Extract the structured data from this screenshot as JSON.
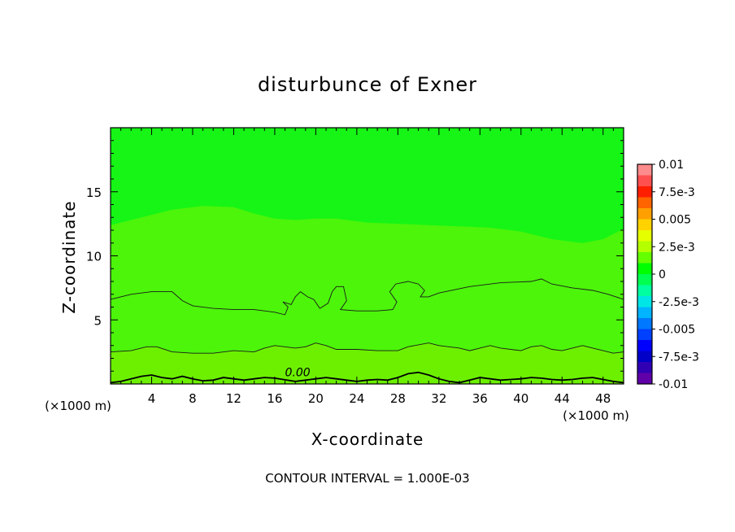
{
  "chart_data": {
    "type": "contour",
    "title": "disturbunce of Exner",
    "xlabel": "X-coordinate",
    "ylabel": "Z-coordinate",
    "x_unit": "(×1000 m)",
    "y_unit": "(×1000 m)",
    "xlim": [
      0,
      50
    ],
    "ylim": [
      0,
      20
    ],
    "x_ticks": [
      4,
      8,
      12,
      16,
      20,
      24,
      28,
      32,
      36,
      40,
      44,
      48
    ],
    "y_ticks": [
      5,
      10,
      15
    ],
    "footer": "CONTOUR INTERVAL = 1.000E-03",
    "contour_label": "0.00",
    "contour_label_pos": [
      17,
      0.6
    ],
    "colorbar": {
      "labels": [
        "0.01",
        "7.5e-3",
        "0.005",
        "2.5e-3",
        "0",
        "-2.5e-3",
        "-0.005",
        "-7.5e-3",
        "-0.01"
      ],
      "colors": [
        "#ff8c8c",
        "#ff5050",
        "#ff1e00",
        "#ff6400",
        "#ffa000",
        "#ffd200",
        "#e6ff00",
        "#b4ff00",
        "#64ff00",
        "#00ff00",
        "#00ff50",
        "#00ffa0",
        "#00e6e6",
        "#00b4ff",
        "#0078ff",
        "#0040ff",
        "#0000ff",
        "#0000c8",
        "#3000b4",
        "#6000a8"
      ]
    },
    "regions": {
      "upper_green": "#16f516",
      "band_color": "#4cf50a",
      "surface_color": "#6cf000",
      "upper_boundary": [
        [
          0,
          12.4
        ],
        [
          3,
          13.0
        ],
        [
          6,
          13.6
        ],
        [
          9,
          13.9
        ],
        [
          12,
          13.8
        ],
        [
          14,
          13.3
        ],
        [
          16,
          12.9
        ],
        [
          18,
          12.8
        ],
        [
          20,
          12.9
        ],
        [
          22,
          12.9
        ],
        [
          25,
          12.6
        ],
        [
          28,
          12.5
        ],
        [
          31,
          12.4
        ],
        [
          34,
          12.3
        ],
        [
          37,
          12.2
        ],
        [
          40,
          11.9
        ],
        [
          43,
          11.3
        ],
        [
          46,
          11.0
        ],
        [
          48,
          11.3
        ],
        [
          50,
          12.1
        ]
      ],
      "contour_mid": [
        [
          0,
          6.6
        ],
        [
          2,
          7.0
        ],
        [
          4,
          7.2
        ],
        [
          6,
          7.2
        ],
        [
          7,
          6.5
        ],
        [
          8,
          6.1
        ],
        [
          10,
          5.9
        ],
        [
          12,
          5.8
        ],
        [
          14,
          5.8
        ],
        [
          16,
          5.6
        ],
        [
          17,
          5.4
        ],
        [
          17.3,
          6.0
        ],
        [
          16.8,
          6.4
        ],
        [
          17.6,
          6.2
        ],
        [
          18,
          6.8
        ],
        [
          18.5,
          7.2
        ],
        [
          19.2,
          6.8
        ],
        [
          19.8,
          6.6
        ],
        [
          20.4,
          5.9
        ],
        [
          21.2,
          6.3
        ],
        [
          21.6,
          7.2
        ],
        [
          22,
          7.6
        ],
        [
          22.7,
          7.6
        ],
        [
          23,
          6.5
        ],
        [
          22.4,
          5.8
        ],
        [
          24,
          5.7
        ],
        [
          26,
          5.7
        ],
        [
          27.5,
          5.8
        ],
        [
          27.9,
          6.4
        ],
        [
          27.2,
          7.2
        ],
        [
          27.8,
          7.8
        ],
        [
          29,
          8.0
        ],
        [
          30,
          7.8
        ],
        [
          30.6,
          7.3
        ],
        [
          30.2,
          6.8
        ],
        [
          31,
          6.8
        ],
        [
          32,
          7.1
        ],
        [
          35,
          7.6
        ],
        [
          38,
          7.9
        ],
        [
          41,
          8.0
        ],
        [
          42,
          8.2
        ],
        [
          43,
          7.8
        ],
        [
          45,
          7.5
        ],
        [
          47,
          7.3
        ],
        [
          48.5,
          7.0
        ],
        [
          50,
          6.6
        ]
      ],
      "contour_low": [
        [
          0,
          2.5
        ],
        [
          2,
          2.6
        ],
        [
          3.5,
          2.9
        ],
        [
          4.5,
          2.9
        ],
        [
          6,
          2.5
        ],
        [
          8,
          2.4
        ],
        [
          10,
          2.4
        ],
        [
          12,
          2.6
        ],
        [
          14,
          2.5
        ],
        [
          15,
          2.8
        ],
        [
          16,
          3.0
        ],
        [
          18,
          2.8
        ],
        [
          19,
          2.9
        ],
        [
          20,
          3.2
        ],
        [
          21,
          3.0
        ],
        [
          22,
          2.7
        ],
        [
          24,
          2.7
        ],
        [
          26,
          2.6
        ],
        [
          28,
          2.6
        ],
        [
          29,
          2.9
        ],
        [
          31,
          3.2
        ],
        [
          32,
          3.0
        ],
        [
          34,
          2.8
        ],
        [
          35,
          2.6
        ],
        [
          36,
          2.8
        ],
        [
          37,
          3.0
        ],
        [
          38,
          2.8
        ],
        [
          40,
          2.6
        ],
        [
          41,
          2.9
        ],
        [
          42,
          3.0
        ],
        [
          43,
          2.7
        ],
        [
          44,
          2.6
        ],
        [
          45,
          2.8
        ],
        [
          46,
          3.0
        ],
        [
          47,
          2.8
        ],
        [
          48,
          2.6
        ],
        [
          49,
          2.4
        ],
        [
          50,
          2.5
        ]
      ],
      "contour_surface": [
        [
          0,
          0.1
        ],
        [
          1,
          0.2
        ],
        [
          2,
          0.4
        ],
        [
          3,
          0.6
        ],
        [
          4,
          0.7
        ],
        [
          5,
          0.5
        ],
        [
          6,
          0.4
        ],
        [
          7,
          0.6
        ],
        [
          8,
          0.4
        ],
        [
          9,
          0.25
        ],
        [
          10,
          0.3
        ],
        [
          11,
          0.5
        ],
        [
          12,
          0.4
        ],
        [
          13,
          0.3
        ],
        [
          14,
          0.4
        ],
        [
          15,
          0.5
        ],
        [
          16,
          0.45
        ],
        [
          18,
          0.2
        ],
        [
          19,
          0.3
        ],
        [
          20,
          0.4
        ],
        [
          21,
          0.5
        ],
        [
          22,
          0.4
        ],
        [
          23,
          0.3
        ],
        [
          24,
          0.2
        ],
        [
          25,
          0.3
        ],
        [
          26,
          0.35
        ],
        [
          27,
          0.3
        ],
        [
          28,
          0.5
        ],
        [
          29,
          0.8
        ],
        [
          30,
          0.9
        ],
        [
          31,
          0.7
        ],
        [
          32,
          0.4
        ],
        [
          33,
          0.2
        ],
        [
          34,
          0.1
        ],
        [
          35,
          0.3
        ],
        [
          36,
          0.5
        ],
        [
          37,
          0.4
        ],
        [
          38,
          0.3
        ],
        [
          39,
          0.35
        ],
        [
          40,
          0.4
        ],
        [
          41,
          0.5
        ],
        [
          42,
          0.45
        ],
        [
          43,
          0.35
        ],
        [
          44,
          0.3
        ],
        [
          45,
          0.35
        ],
        [
          46,
          0.45
        ],
        [
          47,
          0.5
        ],
        [
          48,
          0.35
        ],
        [
          49,
          0.2
        ],
        [
          50,
          0.1
        ]
      ]
    }
  }
}
